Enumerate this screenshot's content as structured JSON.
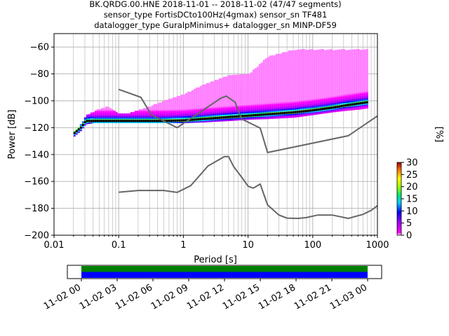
{
  "chart_data": [
    {
      "type": "heatmap",
      "title_lines": [
        "BK.QRDG.00.HNE   2018-11-01 -- 2018-11-02  (47/47 segments)",
        "sensor_type FortisDCto100Hz(4gmax) sensor_sn TF481",
        "datalogger_type GuralpMinimus+ datalogger_sn MINP-DF59"
      ],
      "xlabel": "Period [s]",
      "ylabel": "Power [dB]",
      "x_scale": "log",
      "xlim": [
        0.01,
        1000
      ],
      "ylim": [
        -200,
        -50
      ],
      "grid": true,
      "x_ticks": [
        0.01,
        0.1,
        1,
        10,
        100,
        1000
      ],
      "x_tick_labels": [
        "0.01",
        "0.1",
        "1",
        "10",
        "100",
        "1000"
      ],
      "y_ticks": [
        -200,
        -180,
        -160,
        -140,
        -120,
        -100,
        -80,
        -60
      ],
      "y_tick_labels": [
        "−200",
        "−180",
        "−160",
        "−140",
        "−120",
        "−100",
        "−80",
        "−60"
      ],
      "colorbar": {
        "label": "[%]",
        "range": [
          0,
          30
        ],
        "ticks": [
          0,
          5,
          10,
          15,
          20,
          25,
          30
        ],
        "tick_labels": [
          "0",
          "5",
          "10",
          "15",
          "20",
          "25",
          "30"
        ]
      },
      "series": [
        {
          "role": "noise-model",
          "color": "#666666",
          "x": [
            0.1,
            0.22,
            0.32,
            0.8,
            3.8,
            4.6,
            6.3,
            7.9,
            15.4,
            20,
            354.8,
            1000
          ],
          "y": [
            -91.5,
            -97.4,
            -110.5,
            -120,
            -98,
            -96.5,
            -101,
            -113.5,
            -120.3,
            -138.5,
            -126,
            -111.3
          ]
        },
        {
          "role": "noise-model",
          "color": "#666666",
          "x": [
            0.1,
            0.2,
            0.3,
            0.5,
            0.8,
            1.3,
            2.4,
            4.3,
            5,
            6,
            8,
            10,
            12,
            15.4,
            20,
            30,
            40,
            60,
            80,
            120,
            200,
            354.8,
            600,
            800,
            1000
          ],
          "y": [
            -168,
            -166.7,
            -166.7,
            -166.7,
            -168.2,
            -163.1,
            -148.5,
            -141.5,
            -141.5,
            -149,
            -157,
            -163.5,
            -165,
            -162,
            -177.5,
            -185,
            -187.3,
            -187.5,
            -186.8,
            -185,
            -185,
            -187.5,
            -184.5,
            -181.5,
            -178
          ]
        }
      ],
      "psd_traces": {
        "x": [
          0.02,
          0.025,
          0.03,
          0.04,
          0.05,
          0.06,
          0.07,
          0.08,
          0.1,
          0.15,
          0.2,
          0.3,
          0.5,
          1,
          2,
          5,
          10,
          20,
          50,
          100,
          200,
          300,
          500,
          700
        ],
        "mode": [
          -124,
          -120,
          -115,
          -115,
          -115,
          -115,
          -115,
          -115,
          -115,
          -115,
          -115,
          -115,
          -115,
          -114.5,
          -113.5,
          -112,
          -111,
          -110,
          -108.5,
          -107,
          -105,
          -103.5,
          -102,
          -101
        ],
        "upper": [
          -123,
          -118,
          -111,
          -108,
          -106,
          -105,
          -105,
          -107,
          -110,
          -109,
          -107,
          -104,
          -100,
          -95,
          -88,
          -81,
          -80,
          -67,
          -62,
          -62,
          -62,
          -62,
          -62,
          -62
        ],
        "lower": [
          -126,
          -122,
          -117,
          -116,
          -116,
          -116,
          -116,
          -116,
          -116,
          -116,
          -116,
          -116,
          -116,
          -116,
          -115.5,
          -114.5,
          -113.5,
          -113,
          -112,
          -110,
          -108,
          -107,
          -106,
          -105
        ]
      }
    },
    {
      "type": "timeline",
      "x_tick_labels": [
        "11-02 00",
        "11-02 03",
        "11-02 06",
        "11-02 09",
        "11-02 12",
        "11-02 15",
        "11-02 18",
        "11-02 21",
        "11-03 00"
      ],
      "coverage": [
        {
          "start_hours": 0,
          "end_hours": 24,
          "color": "#008000"
        },
        {
          "start_hours": 0,
          "end_hours": 24,
          "color": "#0000ff"
        }
      ]
    }
  ]
}
